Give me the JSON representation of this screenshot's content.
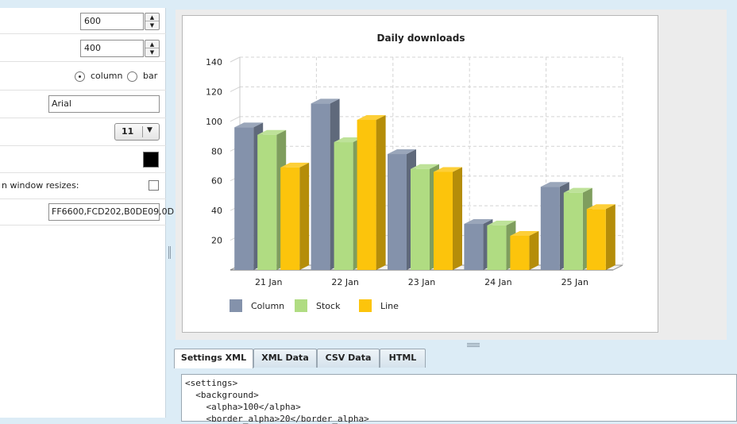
{
  "settings": {
    "width_value": "600",
    "height_value": "400",
    "chart_type_options": [
      "column",
      "bar"
    ],
    "chart_type_selected": "column",
    "font_value": "Arial",
    "font_size_value": "11",
    "text_color": "#000000",
    "resize_label": "n window resizes:",
    "colors_value": "FF6600,FCD202,B0DE09,0D"
  },
  "tabs": [
    "Settings XML",
    "XML Data",
    "CSV Data",
    "HTML"
  ],
  "active_tab": "Settings XML",
  "xml_lines": [
    "<settings>",
    "  <background>",
    "    <alpha>100</alpha>",
    "    <border_alpha>20</border_alpha>"
  ],
  "chart_data": {
    "type": "bar",
    "title": "Daily downloads",
    "categories": [
      "21 Jan",
      "22 Jan",
      "23 Jan",
      "24 Jan",
      "25 Jan"
    ],
    "series": [
      {
        "name": "Column",
        "values": [
          96,
          112,
          78,
          31,
          56
        ],
        "color": "#8492ab"
      },
      {
        "name": "Stock",
        "values": [
          91,
          86,
          68,
          30,
          52
        ],
        "color": "#b0dc82"
      },
      {
        "name": "Line",
        "values": [
          69,
          101,
          66,
          23,
          41
        ],
        "color": "#fcc40c"
      }
    ],
    "ylim": [
      0,
      140
    ],
    "yticks": [
      20,
      40,
      60,
      80,
      100,
      120,
      140
    ],
    "grid": true,
    "legend_placement": "bottom-left",
    "three_d": true
  }
}
